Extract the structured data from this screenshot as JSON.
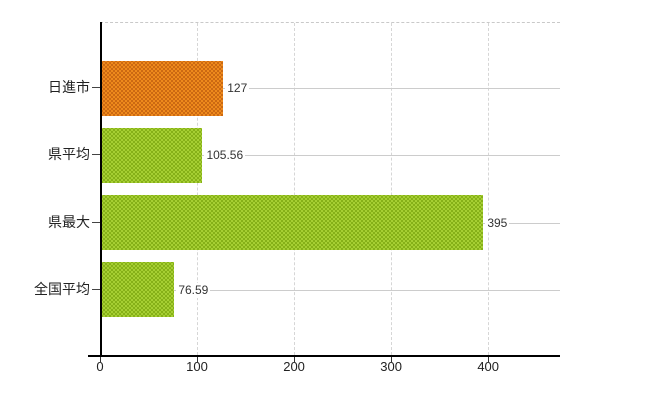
{
  "chart_data": {
    "type": "bar",
    "orientation": "horizontal",
    "title": "",
    "xlabel": "",
    "ylabel": "",
    "categories": [
      "日進市",
      "県平均",
      "県最大",
      "全国平均"
    ],
    "values": [
      127,
      105.56,
      395,
      76.59
    ],
    "value_labels": [
      "127",
      "105.56",
      "395",
      "76.59"
    ],
    "bar_color_keys": [
      "orange",
      "green",
      "green",
      "green"
    ],
    "series": [
      {
        "name": "",
        "values": [
          127,
          105.56,
          395,
          76.59
        ]
      }
    ],
    "x_ticks": [
      0,
      100,
      200,
      300,
      400
    ],
    "x_tick_labels": [
      "0",
      "100",
      "200",
      "300",
      "400"
    ],
    "xlim": [
      0,
      474
    ],
    "grid": true,
    "legend": false
  },
  "colors": {
    "orange_base": "#ee8a1c",
    "orange_dot": "#c96611",
    "green_base": "#a6cf33",
    "green_dot": "#84ae16",
    "gridline": "#d6d6d6",
    "row_line": "#cccccc",
    "axis": "#000000",
    "tick": "#333333",
    "label_text": "#222222",
    "value_text": "#333333",
    "background": "#ffffff"
  }
}
